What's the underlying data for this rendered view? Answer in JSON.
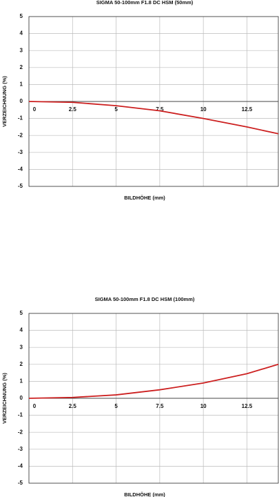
{
  "chart_data": [
    {
      "type": "line",
      "title": "SIGMA  50-100mm F1.8 DC HSM (50mm)",
      "x_label": "BILDHÖHE (mm)",
      "y_label": "VERZEICHNUNG (%)",
      "x": [
        0,
        2.5,
        5,
        7.5,
        10,
        12.5,
        14.3
      ],
      "series": [
        {
          "color": "#cc1f1f",
          "values": [
            0,
            -0.05,
            -0.25,
            -0.55,
            -1.0,
            -1.5,
            -1.9
          ]
        }
      ],
      "xlim": [
        0,
        14.3
      ],
      "xticks": [
        0,
        2.5,
        5,
        7.5,
        10,
        12.5
      ],
      "ylim": [
        -5,
        5
      ],
      "yticks": [
        -5,
        -4,
        -3,
        -2,
        -1,
        0,
        1,
        2,
        3,
        4,
        5
      ],
      "grid": true
    },
    {
      "type": "line",
      "title": "SIGMA  50-100mm F1.8 DC HSM (100mm)",
      "x_label": "BILDHÖHE (mm)",
      "y_label": "VERZEICHNUNG (%)",
      "x": [
        0,
        2.5,
        5,
        7.5,
        10,
        12.5,
        14.3
      ],
      "series": [
        {
          "color": "#cc1f1f",
          "values": [
            0,
            0.05,
            0.2,
            0.5,
            0.9,
            1.45,
            2.0
          ]
        }
      ],
      "xlim": [
        0,
        14.3
      ],
      "xticks": [
        0,
        2.5,
        5,
        7.5,
        10,
        12.5
      ],
      "ylim": [
        -5,
        5
      ],
      "yticks": [
        -5,
        -4,
        -3,
        -2,
        -1,
        0,
        1,
        2,
        3,
        4,
        5
      ],
      "grid": true
    }
  ]
}
